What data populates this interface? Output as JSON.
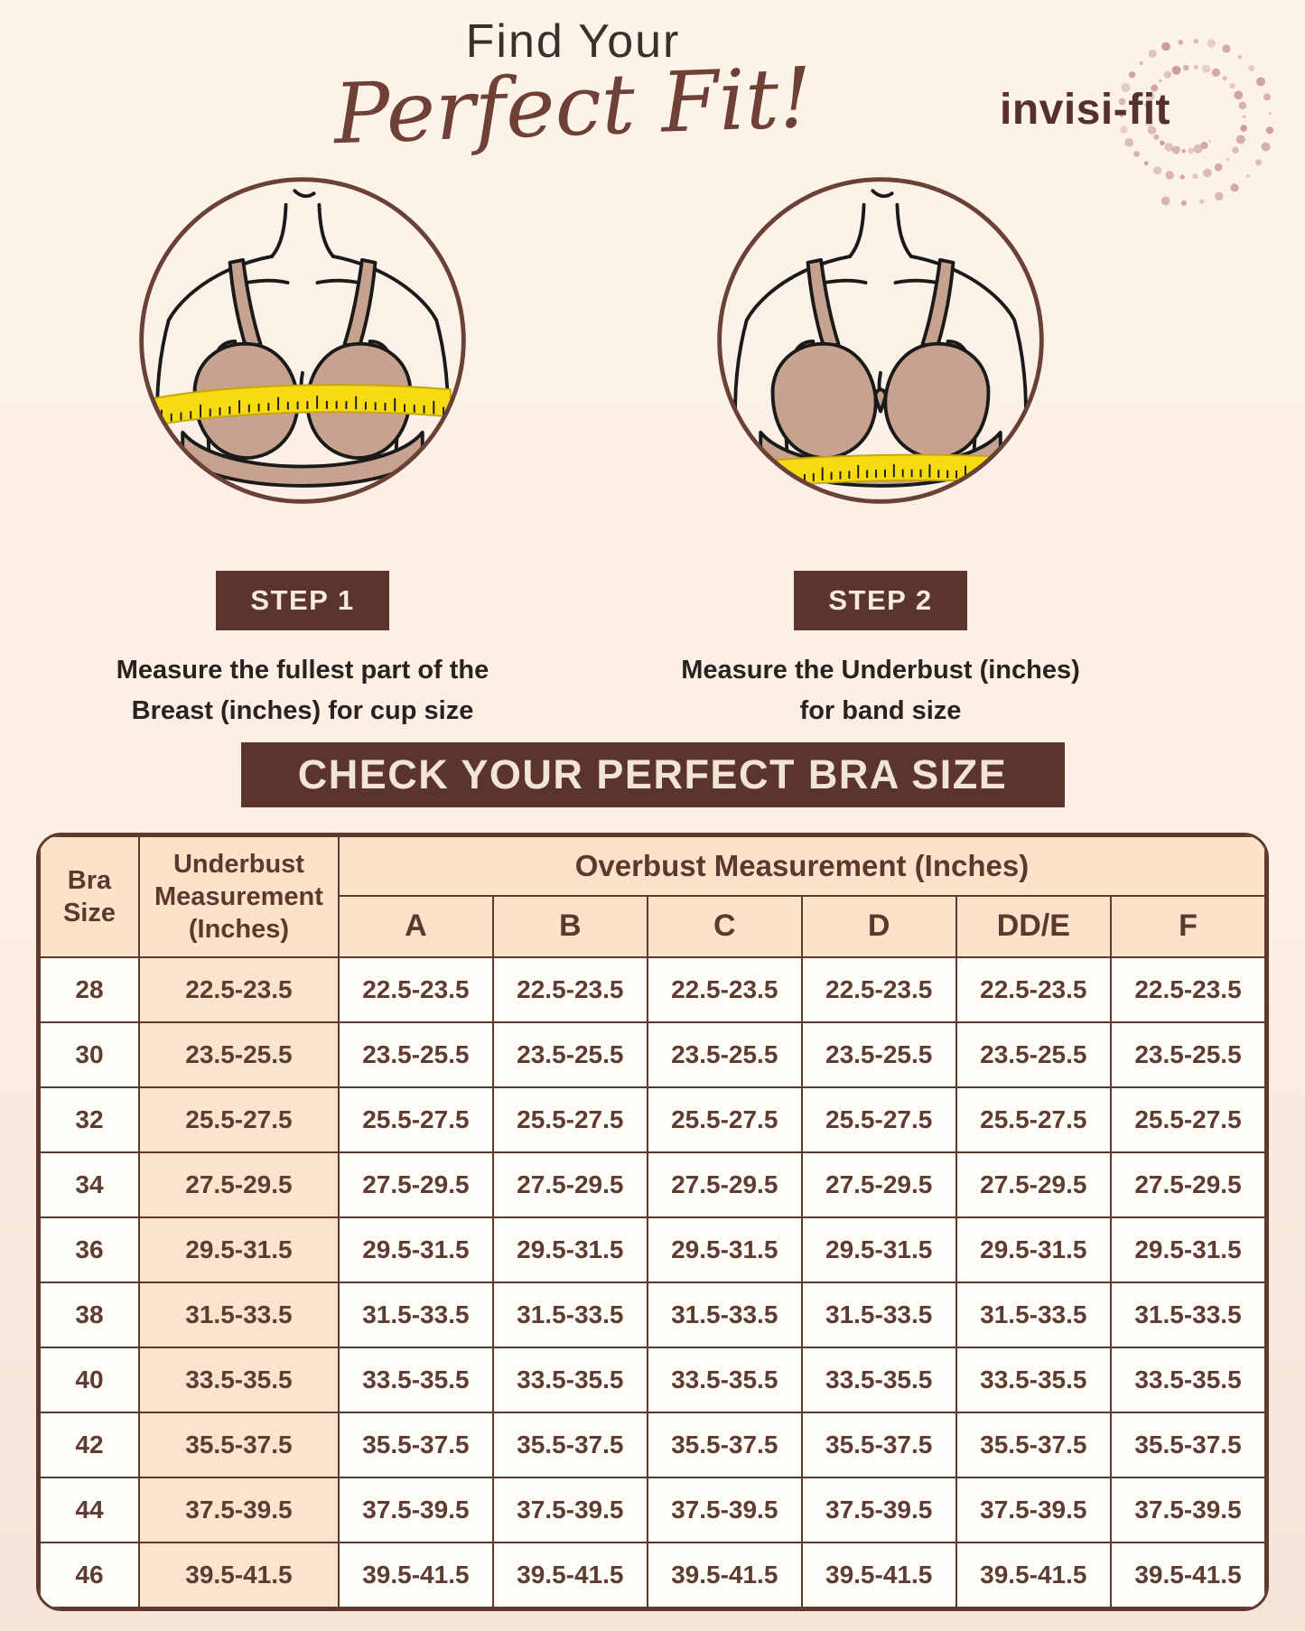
{
  "header": {
    "title_line1": "Find Your",
    "title_line2": "Perfect Fit!",
    "brand": "invisi-fit"
  },
  "steps": [
    {
      "label": "STEP 1",
      "description_lines": [
        "Measure the fullest part of the",
        "Breast (inches) for cup size"
      ],
      "illustration": "overbust-measurement"
    },
    {
      "label": "STEP 2",
      "description_lines": [
        "Measure the Underbust (inches)",
        "for band size"
      ],
      "illustration": "underbust-measurement"
    }
  ],
  "banner_title": "CHECK YOUR PERFECT BRA SIZE",
  "size_table": {
    "corner_header_lines": [
      "Bra",
      "Size"
    ],
    "underbust_header_lines": [
      "Underbust",
      "Measurement",
      "(Inches)"
    ],
    "overbust_header": "Overbust Measurement (Inches)",
    "cup_columns": [
      "A",
      "B",
      "C",
      "D",
      "DD/E",
      "F"
    ],
    "rows": [
      {
        "bra_size": "28",
        "underbust": "22.5-23.5",
        "cup_values": [
          "22.5-23.5",
          "22.5-23.5",
          "22.5-23.5",
          "22.5-23.5",
          "22.5-23.5",
          "22.5-23.5"
        ]
      },
      {
        "bra_size": "30",
        "underbust": "23.5-25.5",
        "cup_values": [
          "23.5-25.5",
          "23.5-25.5",
          "23.5-25.5",
          "23.5-25.5",
          "23.5-25.5",
          "23.5-25.5"
        ]
      },
      {
        "bra_size": "32",
        "underbust": "25.5-27.5",
        "cup_values": [
          "25.5-27.5",
          "25.5-27.5",
          "25.5-27.5",
          "25.5-27.5",
          "25.5-27.5",
          "25.5-27.5"
        ]
      },
      {
        "bra_size": "34",
        "underbust": "27.5-29.5",
        "cup_values": [
          "27.5-29.5",
          "27.5-29.5",
          "27.5-29.5",
          "27.5-29.5",
          "27.5-29.5",
          "27.5-29.5"
        ]
      },
      {
        "bra_size": "36",
        "underbust": "29.5-31.5",
        "cup_values": [
          "29.5-31.5",
          "29.5-31.5",
          "29.5-31.5",
          "29.5-31.5",
          "29.5-31.5",
          "29.5-31.5"
        ]
      },
      {
        "bra_size": "38",
        "underbust": "31.5-33.5",
        "cup_values": [
          "31.5-33.5",
          "31.5-33.5",
          "31.5-33.5",
          "31.5-33.5",
          "31.5-33.5",
          "31.5-33.5"
        ]
      },
      {
        "bra_size": "40",
        "underbust": "33.5-35.5",
        "cup_values": [
          "33.5-35.5",
          "33.5-35.5",
          "33.5-35.5",
          "33.5-35.5",
          "33.5-35.5",
          "33.5-35.5"
        ]
      },
      {
        "bra_size": "42",
        "underbust": "35.5-37.5",
        "cup_values": [
          "35.5-37.5",
          "35.5-37.5",
          "35.5-37.5",
          "35.5-37.5",
          "35.5-37.5",
          "35.5-37.5"
        ]
      },
      {
        "bra_size": "44",
        "underbust": "37.5-39.5",
        "cup_values": [
          "37.5-39.5",
          "37.5-39.5",
          "37.5-39.5",
          "37.5-39.5",
          "37.5-39.5",
          "37.5-39.5"
        ]
      },
      {
        "bra_size": "46",
        "underbust": "39.5-41.5",
        "cup_values": [
          "39.5-41.5",
          "39.5-41.5",
          "39.5-41.5",
          "39.5-41.5",
          "39.5-41.5",
          "39.5-41.5"
        ]
      }
    ]
  },
  "colors": {
    "accent_brown": "#5b352b",
    "script_brown": "#6f4136",
    "table_border": "#5d392e",
    "header_peach": "#fbe2c9",
    "underbust_peach": "#fbe4cd",
    "cell_text": "#5f3c31",
    "tape_yellow": "#f6da12",
    "bra_tan": "#c7a28e",
    "logo_dot_pink": "#c9949b",
    "background_cream": "#fdf3e9"
  }
}
